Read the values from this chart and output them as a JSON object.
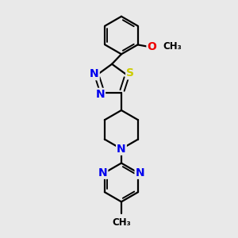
{
  "bg_color": "#e9e9e9",
  "bond_color": "#000000",
  "bond_width": 1.6,
  "atom_colors": {
    "N": "#0000ee",
    "S": "#cccc00",
    "O": "#ee0000",
    "C": "#000000"
  },
  "font_size_atom": 10,
  "font_size_small": 8.5,
  "xlim": [
    0,
    10
  ],
  "ylim": [
    0,
    10
  ]
}
